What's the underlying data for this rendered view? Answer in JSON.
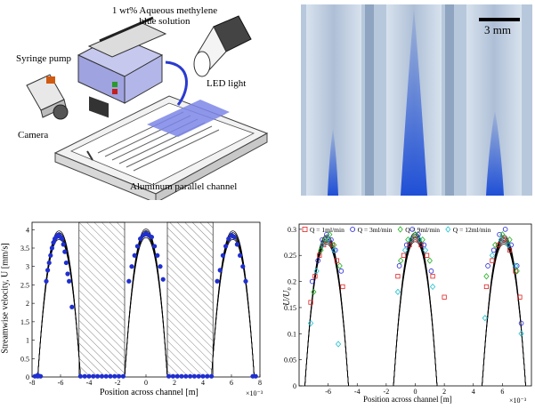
{
  "apparatus": {
    "labels": {
      "solution_line1": "1 wt% Aqueous methylene",
      "solution_line2": "blue solution",
      "syringe_pump": "Syringe pump",
      "led_light": "LED light",
      "camera": "Camera",
      "channel": "Aluminum parallel channel"
    }
  },
  "photo": {
    "scale_bar_label": "3 mm",
    "colors": {
      "dye": "#1f4fd6",
      "background": "#c9d6e4"
    }
  },
  "chart_data": [
    {
      "type": "scatter",
      "xlabel": "Position across channel [m]",
      "ylabel": "Streamwise velocity, U [mm/s]",
      "x_multiplier": "×10⁻³",
      "xlim": [
        -8,
        8
      ],
      "ylim": [
        0,
        4.2
      ],
      "xticks": [
        -8,
        -6,
        -4,
        -2,
        0,
        2,
        4,
        6,
        8
      ],
      "yticks": [
        0,
        0.5,
        1,
        1.5,
        2,
        2.5,
        3,
        3.5,
        4
      ],
      "wall_regions": [
        [
          -4.7,
          -1.5
        ],
        [
          1.5,
          4.7
        ]
      ],
      "channels": [
        {
          "center": -6.1,
          "half_width": 1.5,
          "peak": 3.85
        },
        {
          "center": 0,
          "half_width": 1.5,
          "peak": 3.9
        },
        {
          "center": 6.1,
          "half_width": 1.5,
          "peak": 3.85
        }
      ],
      "points": [
        [
          -7.8,
          0.02
        ],
        [
          -7.6,
          0.02
        ],
        [
          -7.4,
          0.02
        ],
        [
          -7.6,
          0.05
        ],
        [
          -7.0,
          2.6
        ],
        [
          -6.9,
          2.9
        ],
        [
          -6.8,
          3.1
        ],
        [
          -6.7,
          3.3
        ],
        [
          -6.6,
          3.5
        ],
        [
          -6.5,
          3.65
        ],
        [
          -6.4,
          3.75
        ],
        [
          -6.3,
          3.8
        ],
        [
          -6.2,
          3.85
        ],
        [
          -6.1,
          3.85
        ],
        [
          -6.0,
          3.8
        ],
        [
          -5.9,
          3.75
        ],
        [
          -5.8,
          3.6
        ],
        [
          -5.7,
          3.4
        ],
        [
          -5.6,
          3.1
        ],
        [
          -5.5,
          2.8
        ],
        [
          -5.4,
          2.6
        ],
        [
          -5.2,
          1.9
        ],
        [
          -4.6,
          0.02
        ],
        [
          -4.3,
          0.02
        ],
        [
          -4.0,
          0.02
        ],
        [
          -3.7,
          0.02
        ],
        [
          -3.4,
          0.02
        ],
        [
          -3.1,
          0.02
        ],
        [
          -2.8,
          0.02
        ],
        [
          -2.5,
          0.02
        ],
        [
          -2.2,
          0.02
        ],
        [
          -1.9,
          0.02
        ],
        [
          -1.6,
          0.02
        ],
        [
          -1.2,
          2.6
        ],
        [
          -1.0,
          3.0
        ],
        [
          -0.8,
          3.3
        ],
        [
          -0.6,
          3.55
        ],
        [
          -0.4,
          3.75
        ],
        [
          -0.2,
          3.85
        ],
        [
          0.0,
          3.9
        ],
        [
          0.2,
          3.85
        ],
        [
          0.4,
          3.8
        ],
        [
          0.6,
          3.55
        ],
        [
          0.8,
          3.3
        ],
        [
          1.0,
          3.0
        ],
        [
          1.2,
          2.65
        ],
        [
          1.6,
          0.02
        ],
        [
          1.9,
          0.02
        ],
        [
          2.2,
          0.02
        ],
        [
          2.5,
          0.02
        ],
        [
          2.8,
          0.02
        ],
        [
          3.1,
          0.02
        ],
        [
          3.4,
          0.02
        ],
        [
          3.7,
          0.02
        ],
        [
          4.0,
          0.02
        ],
        [
          4.3,
          0.02
        ],
        [
          4.6,
          0.02
        ],
        [
          5.0,
          2.6
        ],
        [
          5.2,
          2.9
        ],
        [
          5.4,
          3.3
        ],
        [
          5.6,
          3.55
        ],
        [
          5.8,
          3.75
        ],
        [
          6.0,
          3.85
        ],
        [
          6.2,
          3.8
        ],
        [
          6.4,
          3.6
        ],
        [
          6.6,
          3.3
        ],
        [
          6.8,
          3.0
        ],
        [
          7.0,
          2.6
        ],
        [
          7.5,
          0.02
        ],
        [
          7.7,
          0.02
        ]
      ]
    },
    {
      "type": "scatter",
      "xlabel": "Position across channel [m]",
      "ylabel": "U/U₀",
      "x_multiplier": "×10⁻³",
      "xlim": [
        -8,
        8
      ],
      "ylim": [
        0,
        0.31
      ],
      "xticks": [
        -6,
        -4,
        -2,
        0,
        2,
        4,
        6
      ],
      "yticks": [
        0,
        0.05,
        0.1,
        0.15,
        0.2,
        0.25,
        0.3
      ],
      "legend_position": "top",
      "channels": [
        {
          "center": -6.1,
          "half_width": 1.5,
          "peak": 0.28
        },
        {
          "center": 0,
          "half_width": 1.5,
          "peak": 0.285
        },
        {
          "center": 6.1,
          "half_width": 1.5,
          "peak": 0.28
        }
      ],
      "series": [
        {
          "name": "Q = 1ml/min",
          "marker": "square",
          "color": "#e02020",
          "points": [
            [
              -7.2,
              0.16
            ],
            [
              -6.9,
              0.21
            ],
            [
              -6.6,
              0.25
            ],
            [
              -6.3,
              0.27
            ],
            [
              -6.0,
              0.28
            ],
            [
              -5.7,
              0.27
            ],
            [
              -5.4,
              0.24
            ],
            [
              -5.0,
              0.19
            ],
            [
              -1.2,
              0.21
            ],
            [
              -0.8,
              0.25
            ],
            [
              -0.4,
              0.27
            ],
            [
              0.0,
              0.28
            ],
            [
              0.4,
              0.27
            ],
            [
              0.8,
              0.25
            ],
            [
              1.2,
              0.21
            ],
            [
              2.0,
              0.17
            ],
            [
              4.9,
              0.19
            ],
            [
              5.3,
              0.24
            ],
            [
              5.7,
              0.27
            ],
            [
              6.1,
              0.28
            ],
            [
              6.5,
              0.26
            ],
            [
              6.9,
              0.22
            ],
            [
              7.2,
              0.17
            ]
          ]
        },
        {
          "name": "Q = 3ml/min",
          "marker": "circle",
          "color": "#2020d0",
          "points": [
            [
              -7.1,
              0.2
            ],
            [
              -6.7,
              0.24
            ],
            [
              -6.4,
              0.28
            ],
            [
              -6.1,
              0.29
            ],
            [
              -5.8,
              0.28
            ],
            [
              -5.5,
              0.26
            ],
            [
              -5.1,
              0.22
            ],
            [
              -1.1,
              0.23
            ],
            [
              -0.6,
              0.27
            ],
            [
              -0.2,
              0.3
            ],
            [
              0.2,
              0.29
            ],
            [
              0.6,
              0.27
            ],
            [
              1.1,
              0.22
            ],
            [
              5.0,
              0.23
            ],
            [
              5.4,
              0.26
            ],
            [
              5.8,
              0.29
            ],
            [
              6.2,
              0.3
            ],
            [
              6.6,
              0.27
            ],
            [
              7.0,
              0.23
            ],
            [
              7.3,
              0.12
            ]
          ]
        },
        {
          "name": "Q = 9ml/min",
          "marker": "diamond",
          "color": "#20b020",
          "points": [
            [
              -7.0,
              0.18
            ],
            [
              -6.5,
              0.26
            ],
            [
              -6.2,
              0.28
            ],
            [
              -5.9,
              0.29
            ],
            [
              -5.6,
              0.27
            ],
            [
              -5.2,
              0.23
            ],
            [
              -1.0,
              0.24
            ],
            [
              -0.5,
              0.28
            ],
            [
              0.0,
              0.29
            ],
            [
              0.5,
              0.28
            ],
            [
              1.0,
              0.24
            ],
            [
              4.9,
              0.21
            ],
            [
              5.5,
              0.27
            ],
            [
              6.0,
              0.29
            ],
            [
              6.5,
              0.28
            ],
            [
              7.0,
              0.22
            ]
          ]
        },
        {
          "name": "Q = 12ml/min",
          "marker": "diamond",
          "color": "#20c0d0",
          "points": [
            [
              -7.2,
              0.12
            ],
            [
              -6.8,
              0.22
            ],
            [
              -6.4,
              0.27
            ],
            [
              -6.0,
              0.28
            ],
            [
              -5.6,
              0.26
            ],
            [
              -5.3,
              0.08
            ],
            [
              -1.2,
              0.18
            ],
            [
              -0.7,
              0.26
            ],
            [
              -0.3,
              0.28
            ],
            [
              0.3,
              0.28
            ],
            [
              0.7,
              0.26
            ],
            [
              1.2,
              0.19
            ],
            [
              4.8,
              0.13
            ],
            [
              5.3,
              0.25
            ],
            [
              5.9,
              0.28
            ],
            [
              6.4,
              0.27
            ],
            [
              6.9,
              0.23
            ],
            [
              7.3,
              0.1
            ]
          ]
        }
      ]
    }
  ]
}
